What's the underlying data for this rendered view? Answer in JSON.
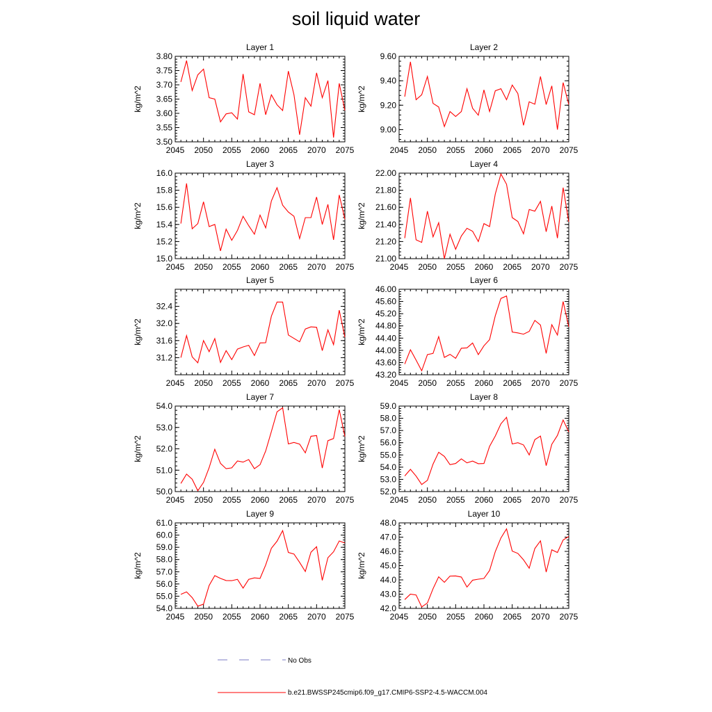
{
  "title": "soil liquid water",
  "legend": {
    "obs_label": "No Obs",
    "model_label": "b.e21.BWSSP245cmip6.f09_g17.CMIP6-SSP2-4.5-WACCM.004",
    "obs_color": "#7b7bc4",
    "model_color": "#ff0000"
  },
  "chart_data": [
    {
      "type": "line",
      "title": "Layer 1",
      "ylabel": "kg/m^2",
      "xlim": [
        2045,
        2075
      ],
      "ylim": [
        3.5,
        3.8
      ],
      "xticks": [
        2045,
        2050,
        2055,
        2060,
        2065,
        2070,
        2075
      ],
      "yticks": [
        "3.50",
        "3.55",
        "3.60",
        "3.65",
        "3.70",
        "3.75",
        "3.80"
      ],
      "x": [
        2046,
        2047,
        2048,
        2049,
        2050,
        2051,
        2052,
        2053,
        2054,
        2055,
        2056,
        2057,
        2058,
        2059,
        2060,
        2061,
        2062,
        2063,
        2064,
        2065,
        2066,
        2067,
        2068,
        2069,
        2070,
        2071,
        2072,
        2073,
        2074,
        2075
      ],
      "series": [
        {
          "values": [
            3.71,
            3.785,
            3.68,
            3.735,
            3.755,
            3.655,
            3.65,
            3.57,
            3.598,
            3.602,
            3.58,
            3.738,
            3.605,
            3.595,
            3.705,
            3.595,
            3.665,
            3.63,
            3.61,
            3.748,
            3.665,
            3.525,
            3.655,
            3.625,
            3.742,
            3.655,
            3.715,
            3.515,
            3.705,
            3.61
          ]
        }
      ]
    },
    {
      "type": "line",
      "title": "Layer 2",
      "ylabel": "kg/m^2",
      "xlim": [
        2045,
        2075
      ],
      "ylim": [
        8.9,
        9.6
      ],
      "xticks": [
        2045,
        2050,
        2055,
        2060,
        2065,
        2070,
        2075
      ],
      "yticks": [
        "9.00",
        "9.20",
        "9.40",
        "9.60"
      ],
      "x": [
        2046,
        2047,
        2048,
        2049,
        2050,
        2051,
        2052,
        2053,
        2054,
        2055,
        2056,
        2057,
        2058,
        2059,
        2060,
        2061,
        2062,
        2063,
        2064,
        2065,
        2066,
        2067,
        2068,
        2069,
        2070,
        2071,
        2072,
        2073,
        2074,
        2075
      ],
      "series": [
        {
          "values": [
            9.27,
            9.555,
            9.245,
            9.285,
            9.435,
            9.215,
            9.185,
            9.025,
            9.148,
            9.108,
            9.148,
            9.335,
            9.175,
            9.118,
            9.325,
            9.148,
            9.318,
            9.335,
            9.245,
            9.365,
            9.295,
            9.035,
            9.228,
            9.208,
            9.435,
            9.205,
            9.358,
            9.0,
            9.385,
            9.205
          ]
        }
      ]
    },
    {
      "type": "line",
      "title": "Layer 3",
      "ylabel": "kg/m^2",
      "xlim": [
        2045,
        2075
      ],
      "ylim": [
        15.0,
        16.0
      ],
      "xticks": [
        2045,
        2050,
        2055,
        2060,
        2065,
        2070,
        2075
      ],
      "yticks": [
        "15.0",
        "15.2",
        "15.4",
        "15.6",
        "15.8",
        "16.0"
      ],
      "x": [
        2046,
        2047,
        2048,
        2049,
        2050,
        2051,
        2052,
        2053,
        2054,
        2055,
        2056,
        2057,
        2058,
        2059,
        2060,
        2061,
        2062,
        2063,
        2064,
        2065,
        2066,
        2067,
        2068,
        2069,
        2070,
        2071,
        2072,
        2073,
        2074,
        2075
      ],
      "series": [
        {
          "values": [
            15.41,
            15.88,
            15.35,
            15.41,
            15.665,
            15.375,
            15.4,
            15.09,
            15.345,
            15.215,
            15.33,
            15.495,
            15.385,
            15.285,
            15.51,
            15.36,
            15.675,
            15.83,
            15.625,
            15.545,
            15.495,
            15.235,
            15.48,
            15.48,
            15.72,
            15.4,
            15.635,
            15.22,
            15.745,
            15.46
          ]
        }
      ]
    },
    {
      "type": "line",
      "title": "Layer 4",
      "ylabel": "kg/m^2",
      "xlim": [
        2045,
        2075
      ],
      "ylim": [
        21.0,
        22.0
      ],
      "xticks": [
        2045,
        2050,
        2055,
        2060,
        2065,
        2070,
        2075
      ],
      "yticks": [
        "21.00",
        "21.20",
        "21.40",
        "21.60",
        "21.80",
        "22.00"
      ],
      "x": [
        2046,
        2047,
        2048,
        2049,
        2050,
        2051,
        2052,
        2053,
        2054,
        2055,
        2056,
        2057,
        2058,
        2059,
        2060,
        2061,
        2062,
        2063,
        2064,
        2065,
        2066,
        2067,
        2068,
        2069,
        2070,
        2071,
        2072,
        2073,
        2074,
        2075
      ],
      "series": [
        {
          "values": [
            21.24,
            21.71,
            21.22,
            21.19,
            21.555,
            21.255,
            21.42,
            21.0,
            21.285,
            21.11,
            21.265,
            21.355,
            21.32,
            21.2,
            21.41,
            21.375,
            21.755,
            21.99,
            21.87,
            21.48,
            21.435,
            21.29,
            21.575,
            21.555,
            21.67,
            21.315,
            21.615,
            21.24,
            21.83,
            21.43
          ]
        }
      ]
    },
    {
      "type": "line",
      "title": "Layer 5",
      "ylabel": "kg/m^2",
      "xlim": [
        2045,
        2075
      ],
      "ylim": [
        30.8,
        32.8
      ],
      "xticks": [
        2045,
        2050,
        2055,
        2060,
        2065,
        2070,
        2075
      ],
      "yticks": [
        "31.2",
        "31.6",
        "32.0",
        "32.4"
      ],
      "x": [
        2046,
        2047,
        2048,
        2049,
        2050,
        2051,
        2052,
        2053,
        2054,
        2055,
        2056,
        2057,
        2058,
        2059,
        2060,
        2061,
        2062,
        2063,
        2064,
        2065,
        2066,
        2067,
        2068,
        2069,
        2070,
        2071,
        2072,
        2073,
        2074,
        2075
      ],
      "series": [
        {
          "values": [
            31.2,
            31.715,
            31.22,
            31.08,
            31.6,
            31.34,
            31.645,
            31.09,
            31.365,
            31.155,
            31.4,
            31.45,
            31.49,
            31.25,
            31.545,
            31.55,
            32.17,
            32.5,
            32.5,
            31.73,
            31.65,
            31.57,
            31.87,
            31.92,
            31.91,
            31.365,
            31.85,
            31.505,
            32.31,
            31.68
          ]
        }
      ]
    },
    {
      "type": "line",
      "title": "Layer 6",
      "ylabel": "kg/m^2",
      "xlim": [
        2045,
        2075
      ],
      "ylim": [
        43.2,
        46.0
      ],
      "xticks": [
        2045,
        2050,
        2055,
        2060,
        2065,
        2070,
        2075
      ],
      "yticks": [
        "43.20",
        "43.60",
        "44.00",
        "44.40",
        "44.80",
        "45.20",
        "45.60",
        "46.00"
      ],
      "x": [
        2046,
        2047,
        2048,
        2049,
        2050,
        2051,
        2052,
        2053,
        2054,
        2055,
        2056,
        2057,
        2058,
        2059,
        2060,
        2061,
        2062,
        2063,
        2064,
        2065,
        2066,
        2067,
        2068,
        2069,
        2070,
        2071,
        2072,
        2073,
        2074,
        2075
      ],
      "series": [
        {
          "values": [
            43.55,
            44.02,
            43.68,
            43.33,
            43.86,
            43.9,
            44.45,
            43.77,
            43.87,
            43.74,
            44.07,
            44.08,
            44.24,
            43.86,
            44.15,
            44.35,
            45.13,
            45.7,
            45.78,
            44.6,
            44.57,
            44.53,
            44.62,
            44.98,
            44.83,
            43.9,
            44.84,
            44.5,
            45.6,
            44.77
          ]
        }
      ]
    },
    {
      "type": "line",
      "title": "Layer 7",
      "ylabel": "kg/m^2",
      "xlim": [
        2045,
        2075
      ],
      "ylim": [
        50.0,
        54.0
      ],
      "xticks": [
        2045,
        2050,
        2055,
        2060,
        2065,
        2070,
        2075
      ],
      "yticks": [
        "50.0",
        "51.0",
        "52.0",
        "53.0",
        "54.0"
      ],
      "x": [
        2046,
        2047,
        2048,
        2049,
        2050,
        2051,
        2052,
        2053,
        2054,
        2055,
        2056,
        2057,
        2058,
        2059,
        2060,
        2061,
        2062,
        2063,
        2064,
        2065,
        2066,
        2067,
        2068,
        2069,
        2070,
        2071,
        2072,
        2073,
        2074,
        2075
      ],
      "series": [
        {
          "values": [
            50.38,
            50.82,
            50.58,
            50.04,
            50.43,
            51.12,
            51.98,
            51.32,
            51.07,
            51.11,
            51.43,
            51.38,
            51.5,
            51.07,
            51.26,
            51.9,
            52.81,
            53.73,
            53.92,
            52.23,
            52.3,
            52.22,
            51.81,
            52.59,
            52.62,
            51.1,
            52.38,
            52.48,
            53.83,
            52.58
          ]
        }
      ]
    },
    {
      "type": "line",
      "title": "Layer 8",
      "ylabel": "kg/m^2",
      "xlim": [
        2045,
        2075
      ],
      "ylim": [
        52.0,
        59.0
      ],
      "xticks": [
        2045,
        2050,
        2055,
        2060,
        2065,
        2070,
        2075
      ],
      "yticks": [
        "52.0",
        "53.0",
        "54.0",
        "55.0",
        "56.0",
        "57.0",
        "58.0",
        "59.0"
      ],
      "x": [
        2046,
        2047,
        2048,
        2049,
        2050,
        2051,
        2052,
        2053,
        2054,
        2055,
        2056,
        2057,
        2058,
        2059,
        2060,
        2061,
        2062,
        2063,
        2064,
        2065,
        2066,
        2067,
        2068,
        2069,
        2070,
        2071,
        2072,
        2073,
        2074,
        2075
      ],
      "series": [
        {
          "values": [
            53.28,
            53.82,
            53.27,
            52.58,
            52.92,
            54.25,
            55.22,
            54.88,
            54.2,
            54.3,
            54.68,
            54.35,
            54.5,
            54.28,
            54.3,
            55.7,
            56.55,
            57.55,
            58.08,
            55.9,
            56.0,
            55.82,
            55.0,
            56.25,
            56.55,
            54.12,
            55.87,
            56.6,
            57.86,
            56.88
          ]
        }
      ]
    },
    {
      "type": "line",
      "title": "Layer 9",
      "ylabel": "kg/m^2",
      "xlim": [
        2045,
        2075
      ],
      "ylim": [
        54.0,
        61.0
      ],
      "xticks": [
        2045,
        2050,
        2055,
        2060,
        2065,
        2070,
        2075
      ],
      "yticks": [
        "54.0",
        "55.0",
        "56.0",
        "57.0",
        "58.0",
        "59.0",
        "60.0",
        "61.0"
      ],
      "x": [
        2046,
        2047,
        2048,
        2049,
        2050,
        2051,
        2052,
        2053,
        2054,
        2055,
        2056,
        2057,
        2058,
        2059,
        2060,
        2061,
        2062,
        2063,
        2064,
        2065,
        2066,
        2067,
        2068,
        2069,
        2070,
        2071,
        2072,
        2073,
        2074,
        2075
      ],
      "series": [
        {
          "values": [
            55.15,
            55.35,
            54.88,
            54.18,
            54.35,
            55.88,
            56.68,
            56.45,
            56.28,
            56.27,
            56.38,
            55.66,
            56.38,
            56.5,
            56.45,
            57.55,
            58.92,
            59.5,
            60.37,
            58.58,
            58.45,
            57.77,
            57.02,
            58.6,
            59.05,
            56.3,
            58.15,
            58.63,
            59.52,
            59.35
          ]
        }
      ]
    },
    {
      "type": "line",
      "title": "Layer 10",
      "ylabel": "kg/m^2",
      "xlim": [
        2045,
        2075
      ],
      "ylim": [
        42.0,
        48.0
      ],
      "xticks": [
        2045,
        2050,
        2055,
        2060,
        2065,
        2070,
        2075
      ],
      "yticks": [
        "42.0",
        "43.0",
        "44.0",
        "45.0",
        "46.0",
        "47.0",
        "48.0"
      ],
      "x": [
        2046,
        2047,
        2048,
        2049,
        2050,
        2051,
        2052,
        2053,
        2054,
        2055,
        2056,
        2057,
        2058,
        2059,
        2060,
        2061,
        2062,
        2063,
        2064,
        2065,
        2066,
        2067,
        2068,
        2069,
        2070,
        2071,
        2072,
        2073,
        2074,
        2075
      ],
      "series": [
        {
          "values": [
            42.62,
            43.0,
            42.94,
            42.1,
            42.38,
            43.38,
            44.22,
            43.83,
            44.27,
            44.28,
            44.2,
            43.5,
            43.98,
            44.05,
            44.1,
            44.66,
            45.98,
            46.94,
            47.58,
            46.02,
            45.86,
            45.41,
            44.82,
            46.2,
            46.74,
            44.55,
            46.11,
            45.92,
            46.8,
            47.05
          ]
        }
      ]
    }
  ]
}
